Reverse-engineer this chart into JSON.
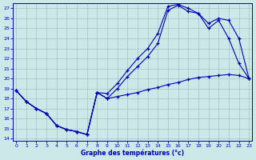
{
  "xlabel": "Graphe des températures (°c)",
  "xlim": [
    -0.3,
    23.3
  ],
  "ylim": [
    13.8,
    27.5
  ],
  "xticks": [
    0,
    1,
    2,
    3,
    4,
    5,
    6,
    7,
    8,
    9,
    10,
    11,
    12,
    13,
    14,
    15,
    16,
    17,
    18,
    19,
    20,
    21,
    22,
    23
  ],
  "yticks": [
    14,
    15,
    16,
    17,
    18,
    19,
    20,
    21,
    22,
    23,
    24,
    25,
    26,
    27
  ],
  "bg_color": "#cce8e8",
  "line_color": "#0000bb",
  "grid_color": "#99bbbb",
  "curve1_x": [
    0,
    1,
    2,
    3,
    4,
    5,
    6,
    7,
    8,
    9,
    10,
    11,
    12,
    13,
    14,
    15,
    16,
    17,
    18,
    19,
    20,
    21,
    22,
    23
  ],
  "curve1_y": [
    18.8,
    17.7,
    17.0,
    16.5,
    15.3,
    14.9,
    14.7,
    14.4,
    18.6,
    18.0,
    18.2,
    18.4,
    18.6,
    18.9,
    19.1,
    19.4,
    19.6,
    19.9,
    20.1,
    20.2,
    20.3,
    20.4,
    20.3,
    20.0
  ],
  "curve2_x": [
    0,
    1,
    2,
    3,
    4,
    5,
    6,
    7,
    8,
    9,
    10,
    11,
    12,
    13,
    14,
    15,
    16,
    17,
    18,
    19,
    20,
    21,
    22,
    23
  ],
  "curve2_y": [
    18.8,
    17.7,
    17.0,
    16.5,
    15.3,
    14.9,
    14.7,
    14.4,
    18.6,
    18.5,
    19.5,
    20.8,
    22.0,
    23.0,
    24.5,
    27.2,
    27.4,
    27.0,
    26.5,
    25.5,
    26.0,
    25.8,
    24.0,
    20.0
  ],
  "curve3_x": [
    0,
    1,
    2,
    3,
    4,
    5,
    6,
    7,
    8,
    9,
    10,
    11,
    12,
    13,
    14,
    15,
    16,
    17,
    18,
    19,
    20,
    21,
    22,
    23
  ],
  "curve3_y": [
    18.8,
    17.7,
    17.0,
    16.5,
    15.3,
    14.9,
    14.7,
    14.4,
    18.6,
    18.0,
    19.0,
    20.2,
    21.2,
    22.2,
    23.5,
    26.8,
    27.3,
    26.7,
    26.5,
    25.0,
    25.8,
    24.0,
    21.5,
    20.0
  ]
}
